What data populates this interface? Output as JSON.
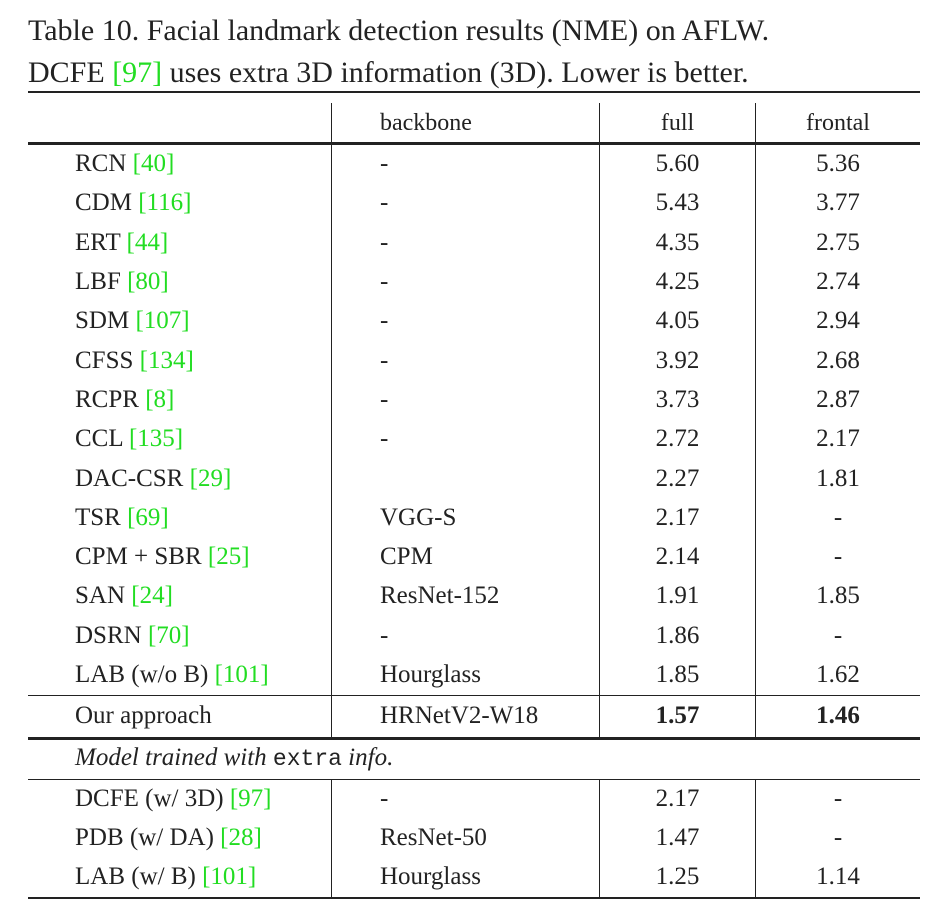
{
  "caption": {
    "line1": "Table 10. Facial landmark detection results (NME) on AFLW.",
    "line2_pre": "DCFE ",
    "line2_cite": "[97]",
    "line2_post": " uses extra 3D information (3D). Lower is better."
  },
  "header": {
    "method": "",
    "backbone": "backbone",
    "full": "full",
    "frontal": "frontal"
  },
  "rows": [
    {
      "method": "RCN ",
      "cite": "[40]",
      "backbone": "-",
      "full": "5.60",
      "frontal": "5.36"
    },
    {
      "method": "CDM ",
      "cite": "[116]",
      "backbone": "-",
      "full": "5.43",
      "frontal": "3.77"
    },
    {
      "method": "ERT ",
      "cite": "[44]",
      "backbone": "-",
      "full": "4.35",
      "frontal": "2.75"
    },
    {
      "method": "LBF ",
      "cite": "[80]",
      "backbone": "-",
      "full": "4.25",
      "frontal": "2.74"
    },
    {
      "method": "SDM ",
      "cite": "[107]",
      "backbone": "-",
      "full": "4.05",
      "frontal": "2.94"
    },
    {
      "method": "CFSS ",
      "cite": "[134]",
      "backbone": "-",
      "full": "3.92",
      "frontal": "2.68"
    },
    {
      "method": "RCPR ",
      "cite": "[8]",
      "backbone": "-",
      "full": "3.73",
      "frontal": "2.87"
    },
    {
      "method": "CCL ",
      "cite": "[135]",
      "backbone": "-",
      "full": "2.72",
      "frontal": "2.17"
    },
    {
      "method": "DAC-CSR ",
      "cite": "[29]",
      "backbone": "",
      "full": "2.27",
      "frontal": "1.81"
    },
    {
      "method": "TSR ",
      "cite": "[69]",
      "backbone": "VGG-S",
      "full": "2.17",
      "frontal": "-"
    },
    {
      "method": "CPM + SBR ",
      "cite": "[25]",
      "backbone": "CPM",
      "full": "2.14",
      "frontal": "-"
    },
    {
      "method": "SAN ",
      "cite": "[24]",
      "backbone": "ResNet-152",
      "full": "1.91",
      "frontal": "1.85"
    },
    {
      "method": "DSRN ",
      "cite": "[70]",
      "backbone": "-",
      "full": "1.86",
      "frontal": "-"
    },
    {
      "method": "LAB (w/o B) ",
      "cite": "[101]",
      "backbone": "Hourglass",
      "full": "1.85",
      "frontal": "1.62"
    }
  ],
  "ours": {
    "method": "Our approach",
    "backbone": "HRNetV2-W18",
    "full": "1.57",
    "frontal": "1.46"
  },
  "extra_note": {
    "pre": "Model trained with ",
    "mono": "extra",
    "post": " info."
  },
  "extra_rows": [
    {
      "method": "DCFE (w/ 3D) ",
      "cite": "[97]",
      "backbone": "-",
      "full": "2.17",
      "frontal": "-"
    },
    {
      "method": "PDB (w/ DA) ",
      "cite": "[28]",
      "backbone": "ResNet-50",
      "full": "1.47",
      "frontal": "-"
    },
    {
      "method": "LAB (w/ B) ",
      "cite": "[101]",
      "backbone": "Hourglass",
      "full": "1.25",
      "frontal": "1.14"
    }
  ]
}
